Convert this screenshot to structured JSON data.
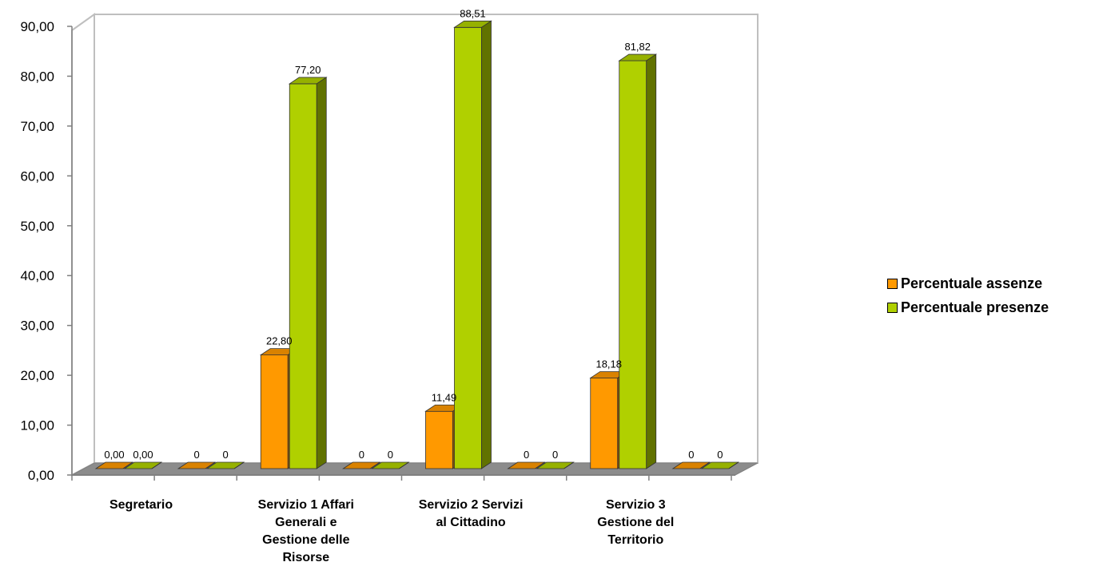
{
  "chart_data": {
    "type": "bar",
    "title": "",
    "xlabel": "",
    "ylabel": "",
    "ylim": [
      0,
      90
    ],
    "yticks": [
      "0,00",
      "10,00",
      "20,00",
      "30,00",
      "40,00",
      "50,00",
      "60,00",
      "70,00",
      "80,00",
      "90,00"
    ],
    "categories": [
      {
        "lines": [
          "Segretario"
        ]
      },
      {
        "lines": []
      },
      {
        "lines": [
          "Servizio 1 Affari",
          "Generali  e",
          "Gestione delle",
          "Risorse"
        ]
      },
      {
        "lines": []
      },
      {
        "lines": [
          "Servizio 2 Servizi",
          "al Cittadino"
        ]
      },
      {
        "lines": []
      },
      {
        "lines": [
          "Servizio 3",
          "Gestione del",
          "Territorio"
        ]
      },
      {
        "lines": []
      }
    ],
    "series": [
      {
        "name": "Percentuale assenze",
        "color": "#ff9900",
        "values": [
          0,
          0,
          22.8,
          0,
          11.49,
          0,
          18.18,
          0
        ],
        "labels": [
          "0,00",
          "0",
          "22,80",
          "0",
          "11,49",
          "0",
          "18,18",
          "0"
        ]
      },
      {
        "name": "Percentuale presenze",
        "color": "#b0d000",
        "values": [
          0,
          0,
          77.2,
          0,
          88.51,
          0,
          81.82,
          0
        ],
        "labels": [
          "0,00",
          "0",
          "77,20",
          "0",
          "88,51",
          "0",
          "81,82",
          "0"
        ]
      }
    ],
    "grid": false,
    "legend_position": "right"
  }
}
